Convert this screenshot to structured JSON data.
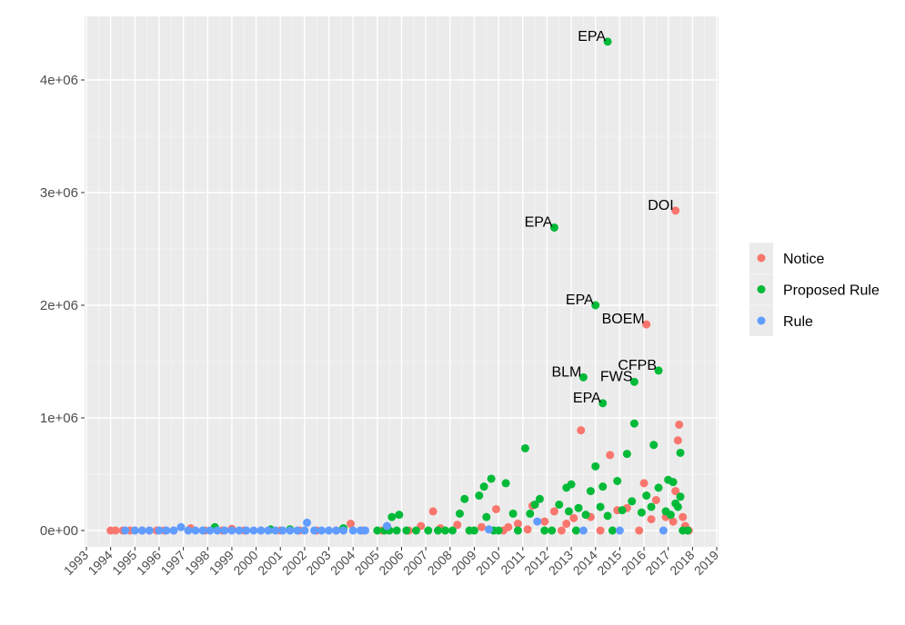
{
  "chart_data": {
    "type": "scatter",
    "title": "",
    "xlabel": "",
    "ylabel": "",
    "xlim": [
      1993,
      2019
    ],
    "ylim": [
      -50000,
      4350000
    ],
    "x_ticks": [
      1993,
      1994,
      1995,
      1996,
      1997,
      1998,
      1999,
      2000,
      2001,
      2002,
      2003,
      2004,
      2005,
      2006,
      2007,
      2008,
      2009,
      2010,
      2011,
      2012,
      2013,
      2014,
      2015,
      2016,
      2017,
      2018,
      2019
    ],
    "x_tick_labels": [
      "1993",
      "1994",
      "1995",
      "1996",
      "1997",
      "1998",
      "1999",
      "2000",
      "2001",
      "2002",
      "2003",
      "2004",
      "2005",
      "2006",
      "2007",
      "2008",
      "2009",
      "2010",
      "2011",
      "2012",
      "2013",
      "2014",
      "2015",
      "2016",
      "2017",
      "2018",
      "2019"
    ],
    "y_ticks": [
      0,
      1000000,
      2000000,
      3000000,
      4000000
    ],
    "y_tick_labels": [
      "0e+00",
      "1e+06",
      "2e+06",
      "3e+06",
      "4e+06"
    ],
    "grid": true,
    "panel_background": "#ebebeb",
    "legend": {
      "position": "right",
      "entries": [
        {
          "label": "Notice",
          "color": "#f8766d"
        },
        {
          "label": "Proposed Rule",
          "color": "#00ba38"
        },
        {
          "label": "Rule",
          "color": "#619cff"
        }
      ]
    },
    "series": [
      {
        "name": "Notice",
        "color": "#f8766d",
        "points": [
          [
            1994.0,
            0
          ],
          [
            1994.2,
            0
          ],
          [
            1994.5,
            0
          ],
          [
            1994.8,
            0
          ],
          [
            1995.0,
            0
          ],
          [
            1995.3,
            0
          ],
          [
            1995.6,
            0
          ],
          [
            1995.9,
            0
          ],
          [
            1996.2,
            0
          ],
          [
            1996.6,
            0
          ],
          [
            1997.3,
            20000
          ],
          [
            1997.9,
            0
          ],
          [
            1998.6,
            0
          ],
          [
            1999.0,
            15000
          ],
          [
            1999.5,
            0
          ],
          [
            2000.2,
            0
          ],
          [
            2001.0,
            0
          ],
          [
            2001.8,
            0
          ],
          [
            2002.5,
            0
          ],
          [
            2003.3,
            0
          ],
          [
            2003.9,
            60000
          ],
          [
            2004.4,
            0
          ],
          [
            2005.2,
            0
          ],
          [
            2006.3,
            0
          ],
          [
            2006.8,
            40000
          ],
          [
            2007.3,
            170000
          ],
          [
            2007.6,
            20000
          ],
          [
            2008.3,
            50000
          ],
          [
            2008.8,
            0
          ],
          [
            2009.3,
            30000
          ],
          [
            2009.9,
            190000
          ],
          [
            2010.4,
            30000
          ],
          [
            2010.8,
            60000
          ],
          [
            2011.2,
            10000
          ],
          [
            2011.4,
            220000
          ],
          [
            2011.9,
            80000
          ],
          [
            2012.3,
            170000
          ],
          [
            2012.8,
            60000
          ],
          [
            2013.1,
            110000
          ],
          [
            2013.4,
            890000
          ],
          [
            2013.8,
            120000
          ],
          [
            2014.2,
            0
          ],
          [
            2014.6,
            670000
          ],
          [
            2014.9,
            180000
          ],
          [
            2015.3,
            200000
          ],
          [
            2015.8,
            0
          ],
          [
            2016.0,
            420000
          ],
          [
            2016.3,
            100000
          ],
          [
            2016.5,
            270000
          ],
          [
            2016.9,
            120000
          ],
          [
            2017.2,
            80000
          ],
          [
            2017.3,
            350000
          ],
          [
            2017.4,
            800000
          ],
          [
            2017.45,
            940000
          ],
          [
            2017.6,
            120000
          ],
          [
            2017.7,
            40000
          ],
          [
            2017.8,
            0
          ],
          [
            2017.85,
            0
          ],
          [
            2012.6,
            0
          ],
          [
            2010.2,
            0
          ]
        ]
      },
      {
        "name": "Proposed Rule",
        "color": "#00ba38",
        "points": [
          [
            1998.3,
            30000
          ],
          [
            2000.6,
            10000
          ],
          [
            2001.4,
            10000
          ],
          [
            2003.6,
            20000
          ],
          [
            2005.0,
            0
          ],
          [
            2005.3,
            0
          ],
          [
            2005.5,
            0
          ],
          [
            2005.6,
            120000
          ],
          [
            2005.8,
            0
          ],
          [
            2005.9,
            140000
          ],
          [
            2006.2,
            0
          ],
          [
            2006.6,
            0
          ],
          [
            2007.1,
            0
          ],
          [
            2007.5,
            0
          ],
          [
            2007.8,
            0
          ],
          [
            2008.1,
            0
          ],
          [
            2008.4,
            150000
          ],
          [
            2008.6,
            280000
          ],
          [
            2008.8,
            0
          ],
          [
            2009.0,
            0
          ],
          [
            2009.2,
            310000
          ],
          [
            2009.4,
            390000
          ],
          [
            2009.5,
            120000
          ],
          [
            2009.7,
            460000
          ],
          [
            2009.8,
            0
          ],
          [
            2010.0,
            0
          ],
          [
            2010.3,
            420000
          ],
          [
            2010.6,
            150000
          ],
          [
            2010.8,
            0
          ],
          [
            2011.1,
            730000
          ],
          [
            2011.3,
            150000
          ],
          [
            2011.5,
            230000
          ],
          [
            2011.7,
            280000
          ],
          [
            2011.9,
            0
          ],
          [
            2012.2,
            0
          ],
          [
            2012.5,
            230000
          ],
          [
            2012.8,
            380000
          ],
          [
            2012.9,
            170000
          ],
          [
            2013.0,
            410000
          ],
          [
            2013.2,
            0
          ],
          [
            2013.3,
            200000
          ],
          [
            2013.6,
            140000
          ],
          [
            2013.8,
            350000
          ],
          [
            2014.0,
            570000
          ],
          [
            2014.2,
            210000
          ],
          [
            2014.3,
            390000
          ],
          [
            2014.5,
            130000
          ],
          [
            2014.7,
            0
          ],
          [
            2014.9,
            440000
          ],
          [
            2015.1,
            180000
          ],
          [
            2015.3,
            680000
          ],
          [
            2015.5,
            260000
          ],
          [
            2015.6,
            950000
          ],
          [
            2015.9,
            160000
          ],
          [
            2016.1,
            310000
          ],
          [
            2016.3,
            210000
          ],
          [
            2016.4,
            760000
          ],
          [
            2016.6,
            380000
          ],
          [
            2016.9,
            170000
          ],
          [
            2017.0,
            450000
          ],
          [
            2017.1,
            140000
          ],
          [
            2017.2,
            430000
          ],
          [
            2017.3,
            240000
          ],
          [
            2017.4,
            210000
          ],
          [
            2017.5,
            690000
          ],
          [
            2017.5,
            300000
          ],
          [
            2017.6,
            0
          ],
          [
            2017.8,
            0
          ]
        ]
      },
      {
        "name": "Rule",
        "color": "#619cff",
        "points": [
          [
            1994.6,
            0
          ],
          [
            1995.0,
            0
          ],
          [
            1995.3,
            0
          ],
          [
            1995.6,
            0
          ],
          [
            1996.0,
            0
          ],
          [
            1996.3,
            0
          ],
          [
            1996.6,
            0
          ],
          [
            1996.9,
            30000
          ],
          [
            1997.2,
            0
          ],
          [
            1997.5,
            0
          ],
          [
            1997.8,
            0
          ],
          [
            1998.1,
            0
          ],
          [
            1998.4,
            0
          ],
          [
            1998.7,
            0
          ],
          [
            1999.0,
            0
          ],
          [
            1999.3,
            0
          ],
          [
            1999.6,
            0
          ],
          [
            1999.9,
            0
          ],
          [
            2000.2,
            0
          ],
          [
            2000.5,
            0
          ],
          [
            2000.8,
            0
          ],
          [
            2001.1,
            0
          ],
          [
            2001.4,
            0
          ],
          [
            2001.7,
            0
          ],
          [
            2002.0,
            0
          ],
          [
            2002.1,
            70000
          ],
          [
            2002.4,
            0
          ],
          [
            2002.7,
            0
          ],
          [
            2003.0,
            0
          ],
          [
            2003.3,
            0
          ],
          [
            2003.6,
            0
          ],
          [
            2004.0,
            0
          ],
          [
            2004.3,
            0
          ],
          [
            2004.5,
            0
          ],
          [
            2005.4,
            40000
          ],
          [
            2009.6,
            10000
          ],
          [
            2011.6,
            80000
          ],
          [
            2013.5,
            0
          ],
          [
            2015.0,
            0
          ],
          [
            2016.8,
            0
          ]
        ]
      }
    ],
    "annotations": [
      {
        "label": "EPA",
        "x": 2014.5,
        "y": 4340000,
        "series": "Proposed Rule"
      },
      {
        "label": "EPA",
        "x": 2012.3,
        "y": 2690000,
        "series": "Proposed Rule"
      },
      {
        "label": "DOI",
        "x": 2017.3,
        "y": 2840000,
        "series": "Notice"
      },
      {
        "label": "EPA",
        "x": 2014.0,
        "y": 2000000,
        "series": "Proposed Rule"
      },
      {
        "label": "BOEM",
        "x": 2016.1,
        "y": 1830000,
        "series": "Notice"
      },
      {
        "label": "CFPB",
        "x": 2016.6,
        "y": 1420000,
        "series": "Proposed Rule"
      },
      {
        "label": "BLM",
        "x": 2013.5,
        "y": 1360000,
        "series": "Proposed Rule"
      },
      {
        "label": "FWS",
        "x": 2015.6,
        "y": 1320000,
        "series": "Proposed Rule"
      },
      {
        "label": "EPA",
        "x": 2014.3,
        "y": 1130000,
        "series": "Proposed Rule"
      }
    ]
  }
}
